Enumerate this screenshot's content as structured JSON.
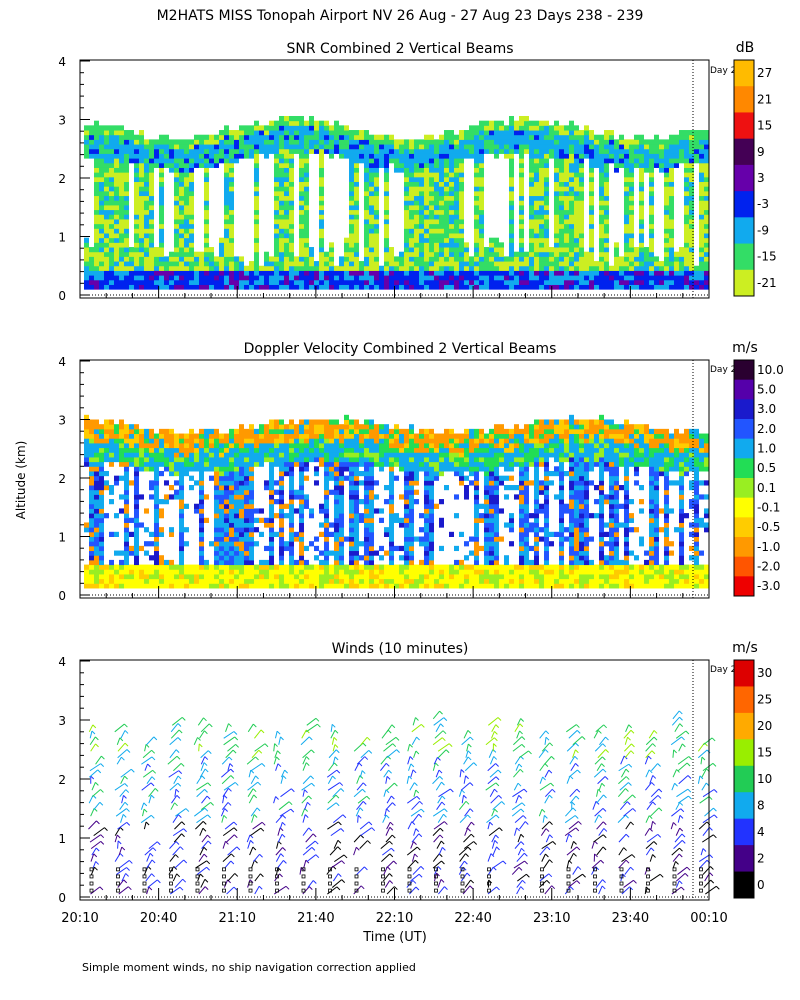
{
  "figure": {
    "title": "M2HATS MISS Tonopah Airport NV  26 Aug - 27 Aug 23 Days 238 - 239",
    "ylabel": "Altitude (km)",
    "xlabel": "Time (UT)",
    "footnote": "Simple moment winds, no ship navigation correction applied",
    "day_marker_label": "Day 2",
    "x_ticks": [
      "20:10",
      "20:40",
      "21:10",
      "21:40",
      "22:10",
      "22:40",
      "23:10",
      "23:40",
      "00:10"
    ]
  },
  "chart_data": [
    {
      "type": "heatmap",
      "title": "SNR Combined 2 Vertical Beams",
      "ylabel": "Altitude (km)",
      "ylim": [
        0,
        4
      ],
      "y_ticks": [
        "0",
        "1",
        "2",
        "3",
        "4"
      ],
      "colorbar": {
        "unit": "dB",
        "labels": [
          "27",
          "21",
          "15",
          "9",
          "3",
          "-3",
          "-9",
          "-15",
          "-21"
        ],
        "colors": [
          "#ffbb00",
          "#ff8800",
          "#ee1111",
          "#440055",
          "#6600aa",
          "#0022ee",
          "#11aaee",
          "#33dd66",
          "#ccee22"
        ]
      }
    },
    {
      "type": "heatmap",
      "title": "Doppler Velocity Combined 2 Vertical Beams",
      "ylabel": "Altitude (km)",
      "ylim": [
        0,
        4
      ],
      "y_ticks": [
        "0",
        "1",
        "2",
        "3",
        "4"
      ],
      "colorbar": {
        "unit": "m/s",
        "labels": [
          "10.0",
          "5.0",
          "3.0",
          "2.0",
          "1.0",
          "0.5",
          "0.1",
          "-0.1",
          "-0.5",
          "-1.0",
          "-2.0",
          "-3.0"
        ],
        "colors": [
          "#2a0030",
          "#5500aa",
          "#1a1acc",
          "#2255ff",
          "#11aaee",
          "#22dd55",
          "#99ee22",
          "#ffff00",
          "#ffcc00",
          "#ff9900",
          "#ff5500",
          "#ee0000"
        ]
      }
    },
    {
      "type": "scatter",
      "title": "Winds (10 minutes)",
      "ylabel": "Altitude (km)",
      "ylim": [
        0,
        4
      ],
      "y_ticks": [
        "0",
        "1",
        "2",
        "3",
        "4"
      ],
      "colorbar": {
        "unit": "m/s",
        "labels": [
          "30",
          "25",
          "20",
          "15",
          "10",
          "8",
          "4",
          "2",
          "0"
        ],
        "colors": [
          "#dd0000",
          "#ff6600",
          "#ffaa00",
          "#99ee00",
          "#22cc55",
          "#11aaee",
          "#2233ff",
          "#440088",
          "#000000"
        ]
      }
    }
  ]
}
